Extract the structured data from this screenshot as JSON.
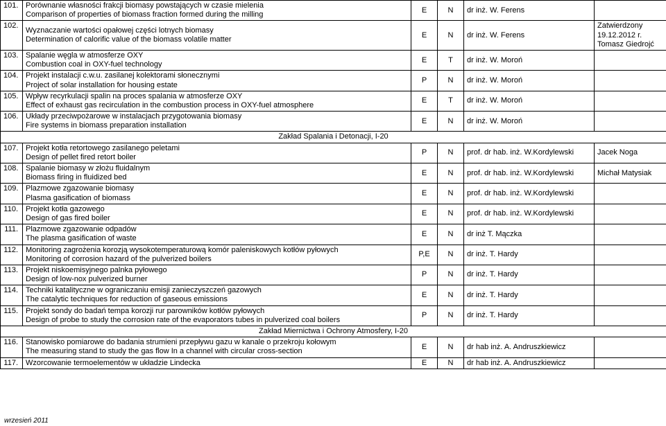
{
  "rows": [
    {
      "num": "101.",
      "desc_pl": "Porównanie własności frakcji biomasy powstających w czasie mielenia",
      "desc_en": "Comparison of properties of biomass fraction formed during the milling",
      "c1": "E",
      "c2": "N",
      "person": "dr inż. W. Ferens",
      "extra": ""
    },
    {
      "num": "102.",
      "desc_pl": "Wyznaczanie wartości opałowej części lotnych biomasy",
      "desc_en": "Determination of calorific value of the biomass volatile matter",
      "c1": "E",
      "c2": "N",
      "person": "dr inż. W. Ferens",
      "extra": "Zatwierdzony\n19.12.2012 r.\nTomasz Giedrojć"
    },
    {
      "num": "103.",
      "desc_pl": "Spalanie węgla w atmosferze OXY",
      "desc_en": "Combustion coal in OXY-fuel technology",
      "c1": "E",
      "c2": "T",
      "person": "dr inż. W. Moroń",
      "extra": ""
    },
    {
      "num": "104.",
      "desc_pl": "Projekt instalacji c.w.u. zasilanej kolektorami słonecznymi",
      "desc_en": "Project of solar installation for housing estate",
      "c1": "P",
      "c2": "N",
      "person": "dr inż. W. Moroń",
      "extra": ""
    },
    {
      "num": "105.",
      "desc_pl": "Wpływ recyrkulacji spalin na proces spalania w atmosferze OXY",
      "desc_en": "Effect of exhaust gas recirculation in the combustion process in OXY-fuel atmosphere",
      "c1": "E",
      "c2": "T",
      "person": "dr inż. W. Moroń",
      "extra": ""
    },
    {
      "num": "106.",
      "desc_pl": "Układy przeciwpożarowe w instalacjach przygotowania biomasy",
      "desc_en": "Fire systems in biomass preparation installation",
      "c1": "E",
      "c2": "N",
      "person": "dr inż. W. Moroń",
      "extra": ""
    }
  ],
  "section1": "Zakład Spalania i Detonacji, I-20",
  "rows2": [
    {
      "num": "107.",
      "desc_pl": "Projekt kotła retortowego zasilanego peletami",
      "desc_en": "Design of pellet fired retort boiler",
      "c1": "P",
      "c2": "N",
      "person": "prof. dr hab. inż. W.Kordylewski",
      "extra": "Jacek Noga"
    },
    {
      "num": "108.",
      "desc_pl": "Spalanie biomasy w złożu fluidalnym",
      "desc_en": "Biomass firing in fluidized bed",
      "c1": "E",
      "c2": "N",
      "person": "prof. dr hab. inż. W.Kordylewski",
      "extra": "Michał Matysiak"
    },
    {
      "num": "109.",
      "desc_pl": "Plazmowe zgazowanie biomasy",
      "desc_en": "Plasma gasification of biomass",
      "c1": "E",
      "c2": "N",
      "person": "prof. dr hab. inż. W.Kordylewski",
      "extra": ""
    },
    {
      "num": "110.",
      "desc_pl": "Projekt kotła gazowego",
      "desc_en": "Design of gas fired boiler",
      "c1": "E",
      "c2": "N",
      "person": "prof. dr hab. inż. W.Kordylewski",
      "extra": ""
    },
    {
      "num": "111.",
      "desc_pl": "Plazmowe zgazowanie odpadów",
      "desc_en": "The plasma gasification of waste",
      "c1": "E",
      "c2": "N",
      "person": "dr inż T. Mączka",
      "extra": ""
    },
    {
      "num": "112.",
      "desc_pl": "Monitoring zagrożenia korozją wysokotemperaturową komór paleniskowych kotłów pyłowych",
      "desc_en": "Monitoring of corrosion hazard of the pulverized boilers",
      "c1": "P,E",
      "c2": "N",
      "person": "dr inż. T. Hardy",
      "extra": ""
    },
    {
      "num": "113.",
      "desc_pl": "Projekt niskoemisyjnego palnka pyłowego",
      "desc_en": "Design of low-nox pulverized burner",
      "c1": "P",
      "c2": "N",
      "person": "dr inż. T. Hardy",
      "extra": ""
    },
    {
      "num": "114.",
      "desc_pl": "Techniki katalityczne w ograniczaniu emisji zanieczyszczeń gazowych",
      "desc_en": "The catalytic techniques for reduction of gaseous emissions",
      "c1": "E",
      "c2": "N",
      "person": "dr inż. T. Hardy",
      "extra": ""
    },
    {
      "num": "115.",
      "desc_pl": "Projekt sondy do badań tempa korozji rur parowników kotłów pyłowych",
      "desc_en": "Design of probe to study the corrosion rate of the evaporators tubes in pulverized coal boilers",
      "c1": "P",
      "c2": "N",
      "person": "dr inż. T. Hardy",
      "extra": ""
    }
  ],
  "section2": "Zakład Miernictwa i Ochrony Atmosfery, I-20",
  "rows3": [
    {
      "num": "116.",
      "desc_pl": "Stanowisko pomiarowe do badania strumieni przepływu gazu w kanale o przekroju kołowym",
      "desc_en": "The measuring stand to study the gas flow In a channel with circular cross-section",
      "c1": "E",
      "c2": "N",
      "person": "dr hab inż. A. Andruszkiewicz",
      "extra": ""
    },
    {
      "num": "117.",
      "desc_pl": "Wzorcowanie termoelementów w układzie Lindecka",
      "desc_en": "",
      "c1": "E",
      "c2": "N",
      "person": "dr hab inż. A. Andruszkiewicz",
      "extra": ""
    }
  ],
  "footer": "wrzesień 2011"
}
